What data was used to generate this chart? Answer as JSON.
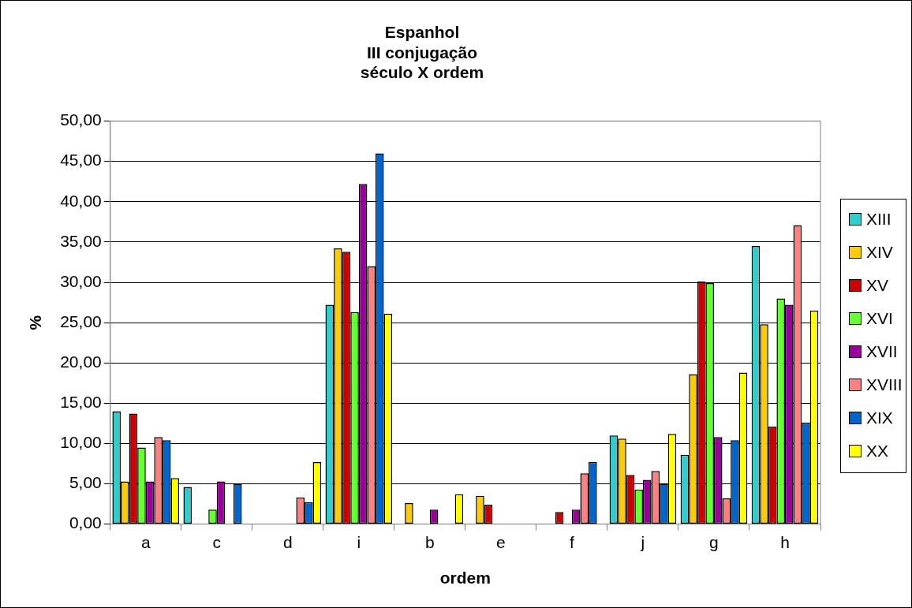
{
  "chart_data": {
    "type": "bar",
    "title": "Espanhol\nIII conjugação\nséculo X ordem",
    "xlabel": "ordem",
    "ylabel": "%",
    "categories": [
      "a",
      "c",
      "d",
      "i",
      "b",
      "e",
      "f",
      "j",
      "g",
      "h"
    ],
    "series": [
      {
        "name": "XIII",
        "color": "#33cccc",
        "values": [
          14.0,
          4.6,
          0,
          27.2,
          0,
          0,
          0,
          11.0,
          8.6,
          34.5
        ]
      },
      {
        "name": "XIV",
        "color": "#ffcc00",
        "values": [
          5.3,
          0,
          0,
          34.2,
          2.6,
          3.5,
          0,
          10.6,
          18.6,
          24.8
        ]
      },
      {
        "name": "XV",
        "color": "#cc0000",
        "values": [
          13.7,
          0,
          0,
          33.8,
          0,
          2.4,
          1.5,
          6.1,
          30.1,
          12.1
        ]
      },
      {
        "name": "XVI",
        "color": "#66ff33",
        "values": [
          9.5,
          1.8,
          0,
          26.3,
          0,
          0,
          0,
          4.3,
          29.9,
          28.0
        ]
      },
      {
        "name": "XVII",
        "color": "#990099",
        "values": [
          5.3,
          5.3,
          0,
          42.2,
          1.8,
          0,
          1.8,
          5.5,
          10.8,
          27.2
        ]
      },
      {
        "name": "XVIII",
        "color": "#ff8080",
        "values": [
          10.8,
          0,
          3.3,
          32.0,
          0,
          0,
          6.3,
          6.6,
          3.2,
          37.1
        ]
      },
      {
        "name": "XIX",
        "color": "#0066cc",
        "values": [
          10.4,
          5.0,
          2.7,
          46.0,
          0,
          0,
          7.7,
          5.0,
          10.4,
          12.6
        ]
      },
      {
        "name": "XX",
        "color": "#ffff00",
        "values": [
          5.7,
          0,
          7.7,
          26.1,
          3.7,
          0,
          0,
          11.2,
          18.8,
          26.5
        ]
      }
    ],
    "ylim": [
      0,
      50
    ],
    "yticks": [
      {
        "value": 0,
        "label": "0,00"
      },
      {
        "value": 5,
        "label": "5,00"
      },
      {
        "value": 10,
        "label": "10,00"
      },
      {
        "value": 15,
        "label": "15,00"
      },
      {
        "value": 20,
        "label": "20,00"
      },
      {
        "value": 25,
        "label": "25,00"
      },
      {
        "value": 30,
        "label": "30,00"
      },
      {
        "value": 35,
        "label": "35,00"
      },
      {
        "value": 40,
        "label": "40,00"
      },
      {
        "value": 45,
        "label": "45,00"
      },
      {
        "value": 50,
        "label": "50,00"
      }
    ],
    "grid": "y",
    "legend": "right"
  }
}
